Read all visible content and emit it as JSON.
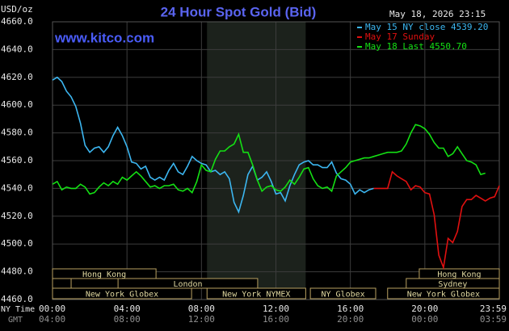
{
  "chart_data": {
    "type": "line",
    "title": "24 Hour Spot Gold (Bid)",
    "website": "www.kitco.com",
    "y_label": "USD/oz",
    "timestamp": "May 18, 2026 23:15",
    "x_label": "NY Time",
    "x2_label": "GMT",
    "x": [
      0,
      0.25,
      0.5,
      0.75,
      1,
      1.25,
      1.5,
      1.75,
      2,
      2.25,
      2.5,
      2.75,
      3,
      3.25,
      3.5,
      3.75,
      4,
      4.25,
      4.5,
      4.75,
      5,
      5.25,
      5.5,
      5.75,
      6,
      6.25,
      6.5,
      6.75,
      7,
      7.25,
      7.5,
      7.75,
      8,
      8.25,
      8.5,
      8.75,
      9,
      9.25,
      9.5,
      9.75,
      10,
      10.25,
      10.5,
      10.75,
      11,
      11.25,
      11.5,
      11.75,
      12,
      12.25,
      12.5,
      12.75,
      13,
      13.25,
      13.5,
      13.75,
      14,
      14.25,
      14.5,
      14.75,
      15,
      15.25,
      15.5,
      15.75,
      16,
      16.25,
      16.5,
      16.75,
      17,
      17.25,
      17.5,
      17.75,
      18,
      18.25,
      18.5,
      18.75,
      19,
      19.25,
      19.5,
      19.75,
      20,
      20.25,
      20.5,
      20.75,
      21,
      21.25,
      21.5,
      21.75,
      22,
      22.25,
      22.5,
      22.75,
      23,
      23.25,
      23.5,
      23.75,
      24
    ],
    "series": [
      {
        "name": "May 15 NY close 4539.20",
        "color": "#3cb6f0",
        "values": [
          4618,
          4620,
          4617,
          4610,
          4606,
          4599,
          4587,
          4571,
          4566,
          4569,
          4570,
          4566,
          4570,
          4578,
          4584,
          4578,
          4570,
          4559,
          4558,
          4554,
          4556,
          4548,
          4546,
          4548,
          4546,
          4553,
          4558,
          4552,
          4550,
          4556,
          4563,
          4560,
          4558,
          4557,
          4552,
          4553,
          4550,
          4552,
          4547,
          4530,
          4523,
          4535,
          4550,
          4556,
          4546,
          4548,
          4552,
          4545,
          4536,
          4537,
          4531,
          4542,
          4550,
          4557,
          4559,
          4560,
          4557,
          4557,
          4555,
          4555,
          4559,
          4551,
          4547,
          4546,
          4543,
          4536,
          4539,
          4537,
          4539,
          4540,
          null,
          null,
          null,
          null,
          null,
          null,
          null,
          null,
          null,
          null,
          null,
          null,
          null,
          null,
          null,
          null,
          null,
          null,
          null,
          null,
          null,
          null,
          null,
          null,
          null,
          null,
          null
        ]
      },
      {
        "name": "May 17 Sunday",
        "color": "#e01010",
        "values": [
          null,
          null,
          null,
          null,
          null,
          null,
          null,
          null,
          null,
          null,
          null,
          null,
          null,
          null,
          null,
          null,
          null,
          null,
          null,
          null,
          null,
          null,
          null,
          null,
          null,
          null,
          null,
          null,
          null,
          null,
          null,
          null,
          null,
          null,
          null,
          null,
          null,
          null,
          null,
          null,
          null,
          null,
          null,
          null,
          null,
          null,
          null,
          null,
          null,
          null,
          null,
          null,
          null,
          null,
          null,
          null,
          null,
          null,
          null,
          null,
          null,
          null,
          null,
          null,
          null,
          null,
          null,
          null,
          null,
          4540,
          4540,
          4540,
          4540,
          4552,
          4549,
          4547,
          4545,
          4539,
          4542,
          4541,
          4537,
          4536,
          4521,
          4492,
          4483,
          4504,
          4501,
          4509,
          4527,
          4532,
          4532,
          4535,
          4533,
          4531,
          4533,
          4534,
          4542
        ]
      },
      {
        "name": "May 18 Last 4550.70",
        "color": "#14e014",
        "values": [
          4543,
          4545,
          4539,
          4541,
          4540,
          4540,
          4543,
          4541,
          4536,
          4537,
          4541,
          4544,
          4542,
          4545,
          4543,
          4548,
          4546,
          4549,
          4552,
          4549,
          4545,
          4541,
          4542,
          4540,
          4542,
          4542,
          4543,
          4539,
          4538,
          4540,
          4537,
          4545,
          4557,
          4553,
          4552,
          4561,
          4567,
          4567,
          4570,
          4572,
          4579,
          4566,
          4566,
          4557,
          4546,
          4538,
          4541,
          4542,
          4539,
          4538,
          4541,
          4546,
          4543,
          4548,
          4554,
          4555,
          4547,
          4542,
          4540,
          4541,
          4538,
          4549,
          4552,
          4555,
          4559,
          4560,
          4561,
          4562,
          4562,
          4563,
          4564,
          4565,
          4566,
          4566,
          4566,
          4567,
          4572,
          4580,
          4586,
          4585,
          4583,
          4579,
          4573,
          4569,
          4569,
          4563,
          4565,
          4570,
          4565,
          4560,
          4559,
          4557,
          4550,
          4551,
          null,
          null,
          null
        ]
      }
    ],
    "xlim": [
      0,
      24
    ],
    "xticks": [
      {
        "value": 0,
        "label": "00:00"
      },
      {
        "value": 4,
        "label": "04:00"
      },
      {
        "value": 8,
        "label": "08:00"
      },
      {
        "value": 12,
        "label": "12:00"
      },
      {
        "value": 16,
        "label": "16:00"
      },
      {
        "value": 20,
        "label": "20:00"
      },
      {
        "value": 24,
        "label": "23:59"
      }
    ],
    "x2_tick_labels": [
      "04:00",
      "08:00",
      "12:00",
      "16:00",
      "20:00",
      "00:00",
      "03:59"
    ],
    "ylim": [
      4460,
      4660
    ],
    "yticks": [
      {
        "value": 4460,
        "label": "4460.0"
      },
      {
        "value": 4480,
        "label": "4480.0"
      },
      {
        "value": 4500,
        "label": "4500.0"
      },
      {
        "value": 4520,
        "label": "4520.0"
      },
      {
        "value": 4540,
        "label": "4540.0"
      },
      {
        "value": 4560,
        "label": "4560.0"
      },
      {
        "value": 4580,
        "label": "4580.0"
      },
      {
        "value": 4600,
        "label": "4600.0"
      },
      {
        "value": 4620,
        "label": "4620.0"
      },
      {
        "value": 4640,
        "label": "4640.0"
      },
      {
        "value": 4660,
        "label": "4660.0"
      }
    ],
    "grid": true,
    "shaded": [
      8.3,
      13.6
    ],
    "sessions": [
      {
        "name": "Hong Kong",
        "start": 0,
        "end": 5.56,
        "row": 0
      },
      {
        "name": "Hong Kong",
        "start": 19.7,
        "end": 24,
        "row": 0
      },
      {
        "start": 0,
        "end": 1.0,
        "row": 1
      },
      {
        "name": "London",
        "start": 3.52,
        "end": 11.02,
        "row": 1
      },
      {
        "name": "Sydney",
        "start": 19.0,
        "end": 24,
        "row": 1
      },
      {
        "name": "New York Globex",
        "start": 0,
        "end": 7.47,
        "row": 2
      },
      {
        "name": "New York NYMEX",
        "start": 8.3,
        "end": 13.6,
        "row": 2
      },
      {
        "name": "NY Globex",
        "start": 13.85,
        "end": 17.36,
        "row": 2
      },
      {
        "name": "New York Globex",
        "start": 18.0,
        "end": 24,
        "row": 2
      }
    ]
  }
}
